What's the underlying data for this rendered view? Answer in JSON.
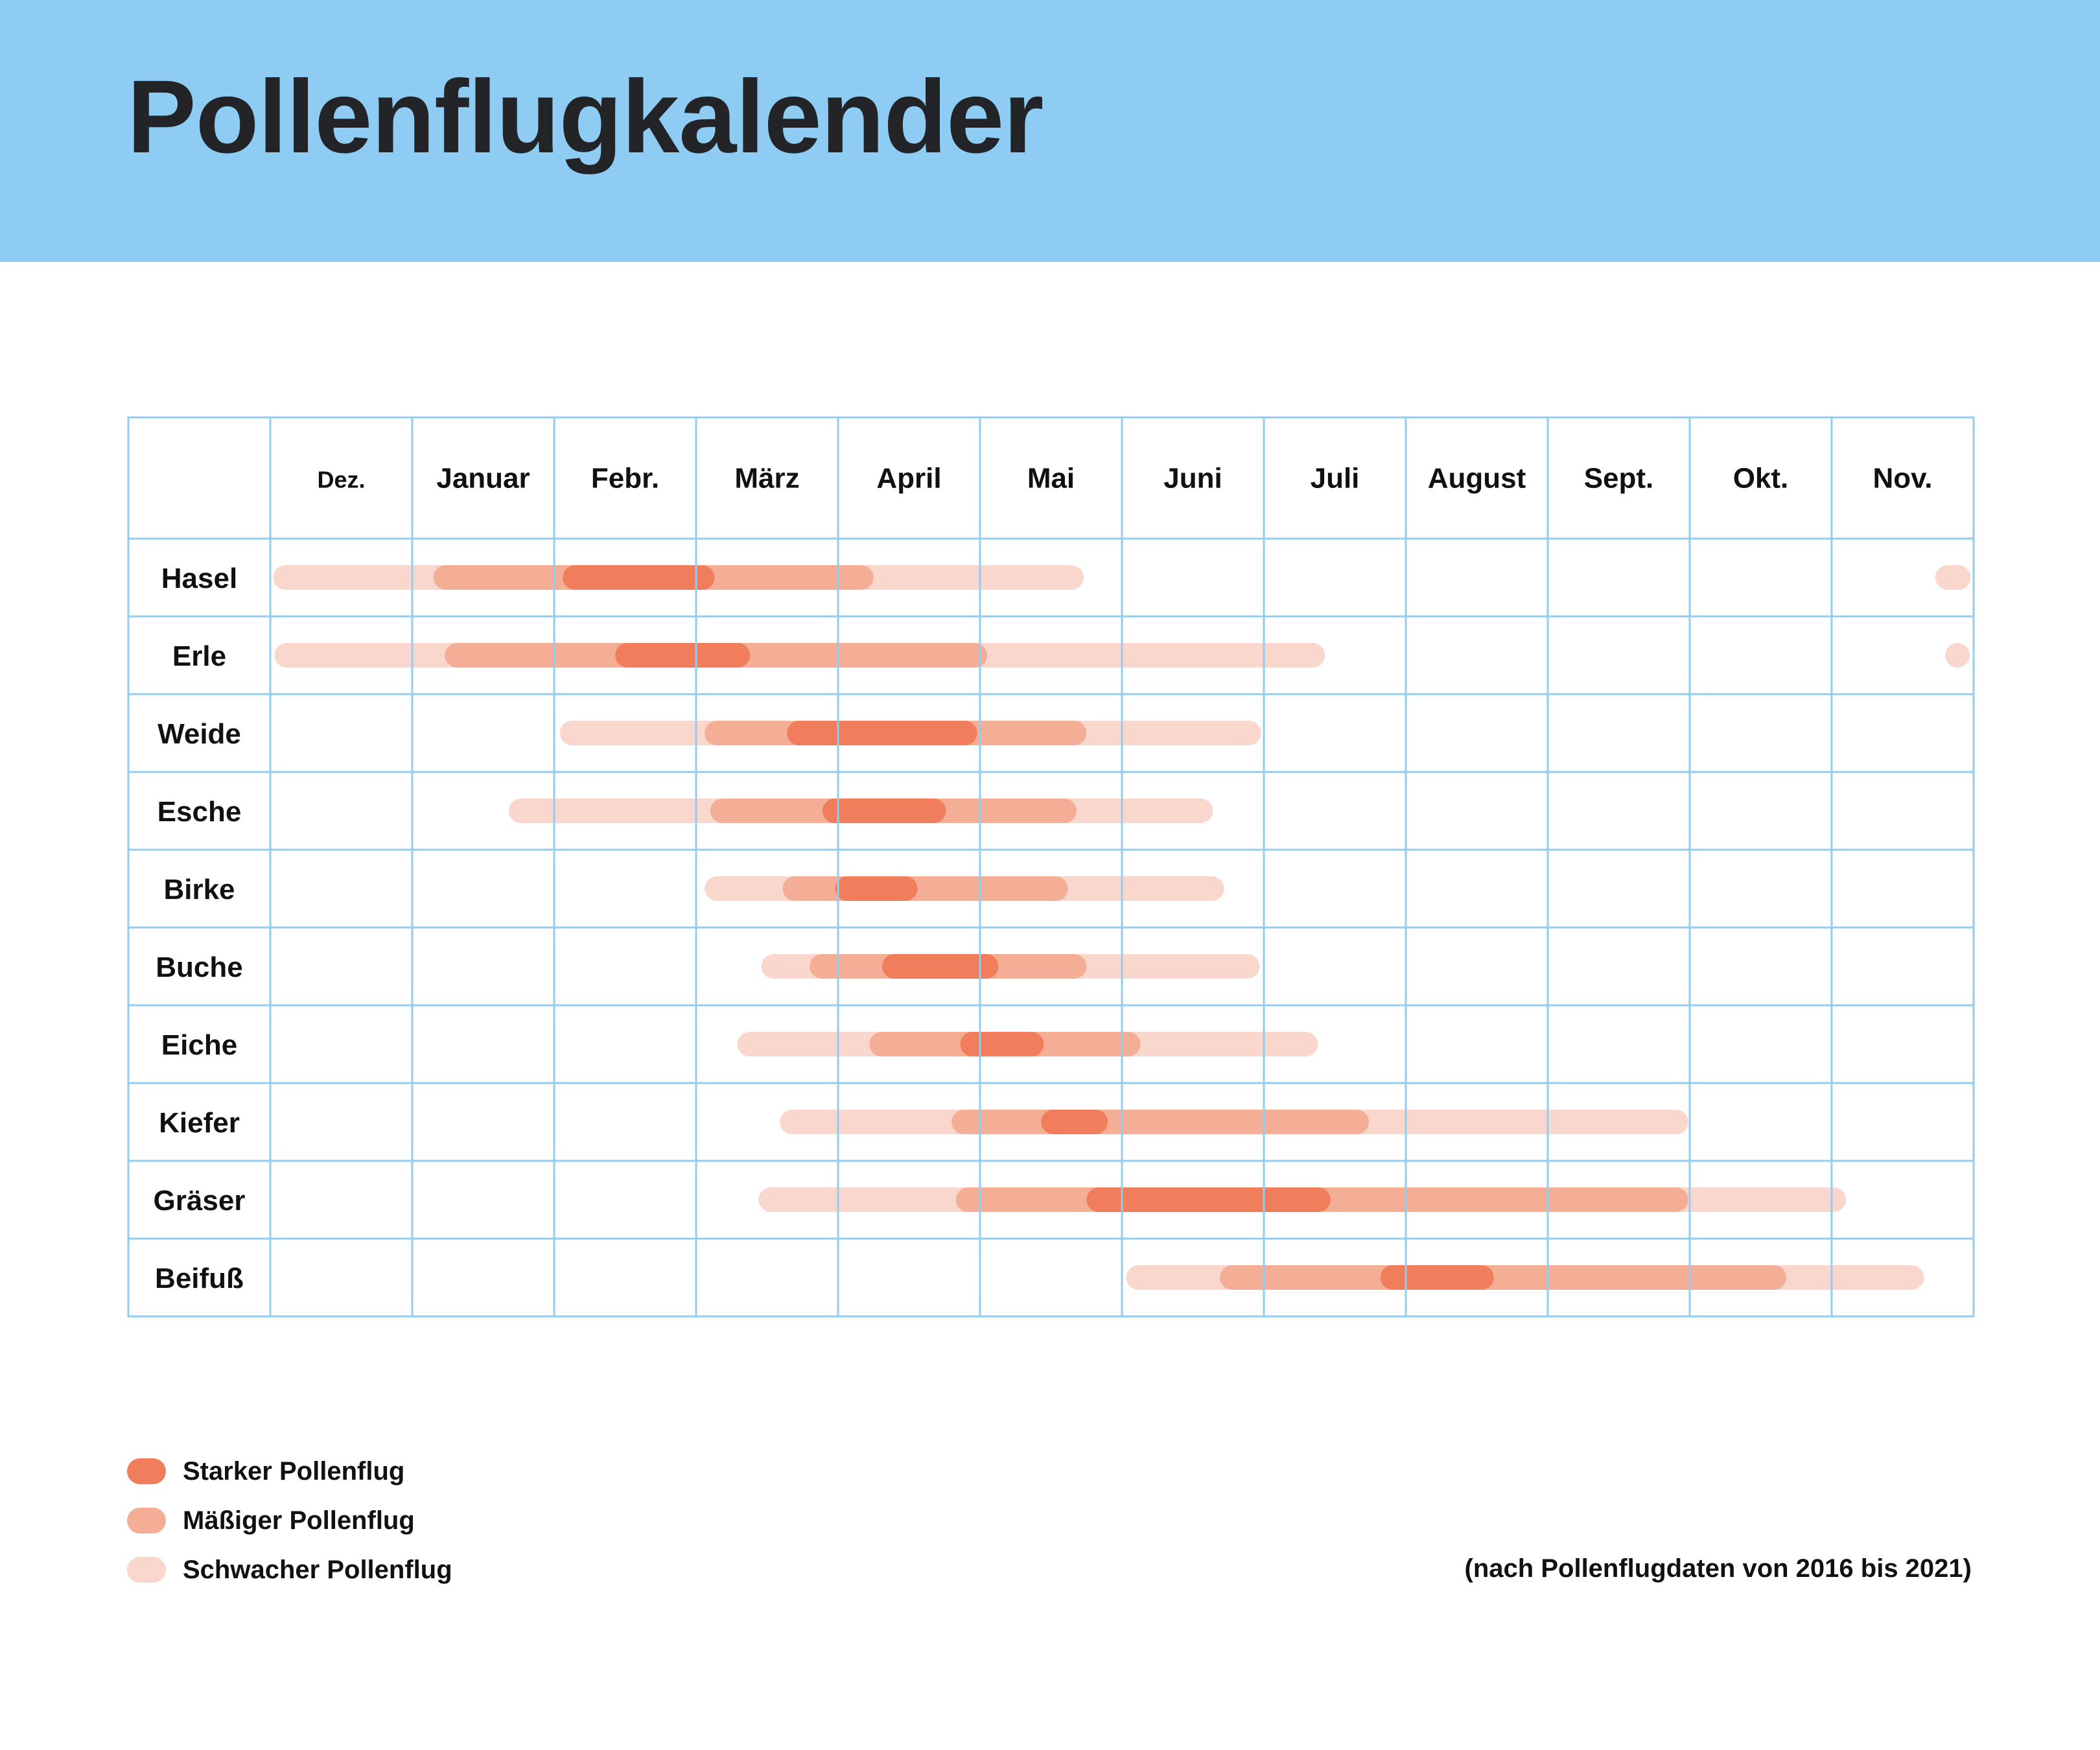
{
  "title": "Pollenflugkalender",
  "chart_data": {
    "type": "gantt",
    "months": [
      "Dez.",
      "Januar",
      "Febr.",
      "März",
      "April",
      "Mai",
      "Juni",
      "Juli",
      "August",
      "Sept.",
      "Okt.",
      "Nov."
    ],
    "rows": [
      {
        "name": "Hasel",
        "bars": [
          {
            "level": "schwach",
            "start": 0.02,
            "end": 5.73
          },
          {
            "level": "mäßig",
            "start": 1.15,
            "end": 4.25
          },
          {
            "level": "stark",
            "start": 2.06,
            "end": 3.13
          },
          {
            "level": "schwach",
            "start": 11.73,
            "end": 11.98
          }
        ]
      },
      {
        "name": "Erle",
        "bars": [
          {
            "level": "schwach",
            "start": 0.03,
            "end": 7.43
          },
          {
            "level": "mäßig",
            "start": 1.23,
            "end": 5.05
          },
          {
            "level": "stark",
            "start": 2.43,
            "end": 3.38
          },
          {
            "level": "schwach",
            "start": 11.8,
            "end": 11.92
          }
        ]
      },
      {
        "name": "Weide",
        "bars": [
          {
            "level": "schwach",
            "start": 2.04,
            "end": 6.98
          },
          {
            "level": "mäßig",
            "start": 3.06,
            "end": 5.75
          },
          {
            "level": "stark",
            "start": 3.64,
            "end": 4.98
          }
        ]
      },
      {
        "name": "Esche",
        "bars": [
          {
            "level": "schwach",
            "start": 1.68,
            "end": 6.64
          },
          {
            "level": "mäßig",
            "start": 3.1,
            "end": 5.68
          },
          {
            "level": "stark",
            "start": 3.89,
            "end": 4.76
          }
        ]
      },
      {
        "name": "Birke",
        "bars": [
          {
            "level": "schwach",
            "start": 3.06,
            "end": 6.72
          },
          {
            "level": "mäßig",
            "start": 3.61,
            "end": 5.62
          },
          {
            "level": "stark",
            "start": 3.98,
            "end": 4.56
          }
        ]
      },
      {
        "name": "Buche",
        "bars": [
          {
            "level": "schwach",
            "start": 3.46,
            "end": 6.97
          },
          {
            "level": "mäßig",
            "start": 3.8,
            "end": 5.75
          },
          {
            "level": "stark",
            "start": 4.31,
            "end": 5.13
          }
        ]
      },
      {
        "name": "Eiche",
        "bars": [
          {
            "level": "schwach",
            "start": 3.29,
            "end": 7.38
          },
          {
            "level": "mäßig",
            "start": 4.22,
            "end": 6.13
          },
          {
            "level": "stark",
            "start": 4.86,
            "end": 5.45
          }
        ]
      },
      {
        "name": "Kiefer",
        "bars": [
          {
            "level": "schwach",
            "start": 3.59,
            "end": 9.99
          },
          {
            "level": "mäßig",
            "start": 4.8,
            "end": 7.74
          },
          {
            "level": "stark",
            "start": 5.43,
            "end": 5.9
          }
        ]
      },
      {
        "name": "Gräser",
        "bars": [
          {
            "level": "schwach",
            "start": 3.44,
            "end": 11.1
          },
          {
            "level": "mäßig",
            "start": 4.83,
            "end": 9.99
          },
          {
            "level": "stark",
            "start": 5.75,
            "end": 7.47
          }
        ]
      },
      {
        "name": "Beifuß",
        "bars": [
          {
            "level": "schwach",
            "start": 6.03,
            "end": 11.65
          },
          {
            "level": "mäßig",
            "start": 6.69,
            "end": 10.68
          },
          {
            "level": "stark",
            "start": 7.82,
            "end": 8.62
          }
        ]
      }
    ],
    "legend": [
      {
        "key": "stark",
        "label": "Starker Pollenflug",
        "color": "#f07e5c"
      },
      {
        "key": "mäßig",
        "label": "Mäßiger Pollenflug",
        "color": "#f5ae96"
      },
      {
        "key": "schwach",
        "label": "Schwacher Pollenflug",
        "color": "#fad7cc"
      }
    ],
    "grid": true,
    "grid_color": "#92cdf0",
    "legend_placement": "bottom-left"
  },
  "note": "(nach Pollenflugdaten von 2016 bis 2021)"
}
